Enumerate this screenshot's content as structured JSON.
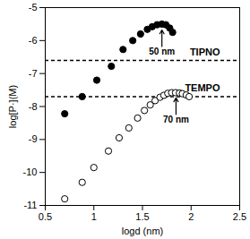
{
  "chart_data": {
    "type": "scatter",
    "x_label": "logd (nm)",
    "y_label": "log[P·](M)",
    "xlim": [
      0.5,
      2.5
    ],
    "xticks": [
      0.5,
      1,
      1.5,
      2,
      2.5
    ],
    "ylim": [
      -11,
      -5
    ],
    "yticks": [
      -11,
      -10,
      -9,
      -8,
      -7,
      -6,
      -5
    ],
    "series": [
      {
        "color": "#000000",
        "marker": "filled_circle",
        "x": [
          0.7,
          0.88,
          1.03,
          1.18,
          1.3,
          1.4,
          1.48,
          1.55,
          1.6,
          1.65,
          1.7,
          1.74,
          1.78,
          1.81
        ],
        "values": [
          -8.22,
          -7.7,
          -7.2,
          -6.78,
          -6.27,
          -6.0,
          -5.8,
          -5.66,
          -5.58,
          -5.52,
          -5.5,
          -5.52,
          -5.62,
          -5.75
        ]
      },
      {
        "color": "#000000",
        "marker": "open_circle",
        "x": [
          0.7,
          0.88,
          1.0,
          1.15,
          1.26,
          1.36,
          1.45,
          1.52,
          1.58,
          1.63,
          1.68,
          1.72,
          1.76,
          1.8,
          1.84,
          1.88,
          1.91,
          1.95,
          1.98
        ],
        "values": [
          -10.8,
          -10.3,
          -9.85,
          -9.35,
          -8.95,
          -8.65,
          -8.35,
          -8.12,
          -7.95,
          -7.82,
          -7.72,
          -7.66,
          -7.6,
          -7.58,
          -7.58,
          -7.59,
          -7.61,
          -7.65,
          -7.7
        ]
      }
    ],
    "reference_lines": [
      {
        "value": -6.6,
        "label": "TIPNO",
        "color": "#000000",
        "line_style": "dashed"
      },
      {
        "value": -7.7,
        "label": "TEMPO",
        "color": "#000000",
        "line_style": "dashed"
      }
    ],
    "annotations": [
      {
        "text": "50 nm",
        "x": 1.7,
        "y": -5.68
      },
      {
        "text": "70 nm",
        "x": 1.845,
        "y": -7.74
      }
    ]
  }
}
